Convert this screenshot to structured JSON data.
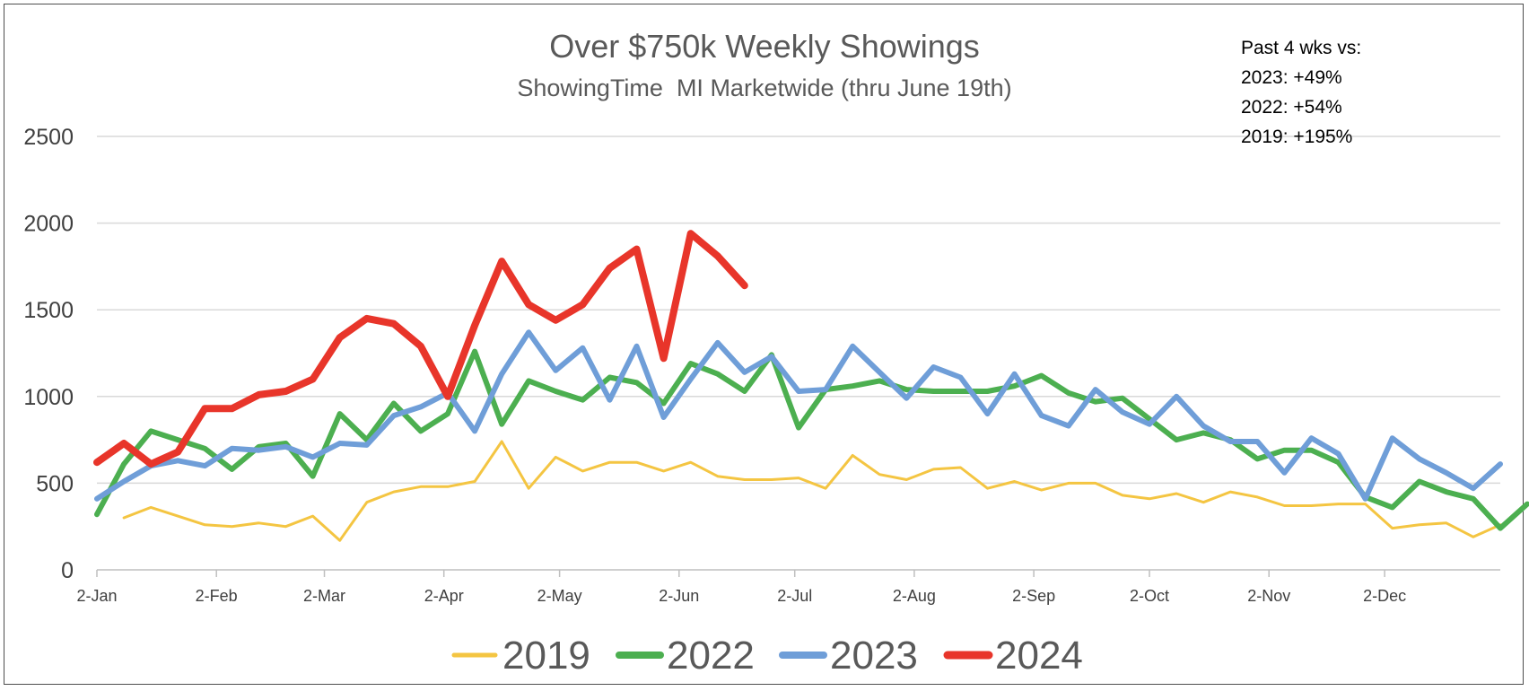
{
  "chart_data": {
    "type": "line",
    "title": "Over $750k Weekly Showings",
    "subtitle": "ShowingTime  MI Marketwide (thru June 19th)",
    "annotation": [
      "Past 4 wks vs:",
      "2023: +49%",
      "2022: +54%",
      "2019: +195%"
    ],
    "ylim": [
      0,
      2500
    ],
    "yticks": [
      0,
      500,
      1000,
      1500,
      2000,
      2500
    ],
    "xlim": [
      0,
      364
    ],
    "xticks": [
      {
        "label": "2-Jan",
        "day": 0
      },
      {
        "label": "2-Feb",
        "day": 31
      },
      {
        "label": "2-Mar",
        "day": 59
      },
      {
        "label": "2-Apr",
        "day": 90
      },
      {
        "label": "2-May",
        "day": 120
      },
      {
        "label": "2-Jun",
        "day": 151
      },
      {
        "label": "2-Jul",
        "day": 181
      },
      {
        "label": "2-Aug",
        "day": 212
      },
      {
        "label": "2-Sep",
        "day": 243
      },
      {
        "label": "2-Oct",
        "day": 273
      },
      {
        "label": "2-Nov",
        "day": 304
      },
      {
        "label": "2-Dec",
        "day": 334
      }
    ],
    "grid": true,
    "legend_position": "bottom",
    "series": [
      {
        "name": "2019",
        "color": "#F4C542",
        "width": 3,
        "start_day": 7,
        "values": [
          300,
          360,
          310,
          260,
          250,
          270,
          250,
          310,
          170,
          390,
          450,
          480,
          480,
          510,
          740,
          470,
          650,
          570,
          620,
          620,
          570,
          620,
          540,
          520,
          520,
          530,
          470,
          660,
          550,
          520,
          580,
          590,
          470,
          510,
          460,
          500,
          500,
          430,
          410,
          440,
          390,
          450,
          420,
          370,
          370,
          380,
          380,
          240,
          260,
          270,
          190,
          260
        ]
      },
      {
        "name": "2022",
        "color": "#4CAF50",
        "width": 6,
        "start_day": 0,
        "values": [
          320,
          610,
          800,
          750,
          700,
          580,
          710,
          730,
          540,
          900,
          750,
          960,
          800,
          900,
          1260,
          840,
          1090,
          1030,
          980,
          1110,
          1080,
          960,
          1190,
          1130,
          1030,
          1240,
          820,
          1040,
          1060,
          1090,
          1040,
          1030,
          1030,
          1030,
          1060,
          1120,
          1020,
          970,
          990,
          870,
          750,
          790,
          750,
          640,
          690,
          690,
          620,
          420,
          360,
          510,
          450,
          410,
          240,
          380
        ]
      },
      {
        "name": "2023",
        "color": "#6F9ED8",
        "width": 6,
        "start_day": 0,
        "values": [
          410,
          510,
          600,
          630,
          600,
          700,
          690,
          710,
          650,
          730,
          720,
          890,
          940,
          1020,
          800,
          1130,
          1370,
          1150,
          1280,
          980,
          1290,
          880,
          1100,
          1310,
          1140,
          1230,
          1030,
          1040,
          1290,
          1140,
          990,
          1170,
          1110,
          900,
          1130,
          890,
          830,
          1040,
          910,
          840,
          1000,
          830,
          740,
          740,
          560,
          760,
          670,
          410,
          760,
          640,
          560,
          470,
          610
        ]
      },
      {
        "name": "2024",
        "color": "#E8352A",
        "width": 8,
        "start_day": 0,
        "values": [
          620,
          730,
          610,
          680,
          930,
          930,
          1010,
          1030,
          1100,
          1340,
          1450,
          1420,
          1290,
          1000,
          1410,
          1780,
          1530,
          1440,
          1530,
          1740,
          1850,
          1220,
          1940,
          1810,
          1640
        ]
      }
    ]
  }
}
